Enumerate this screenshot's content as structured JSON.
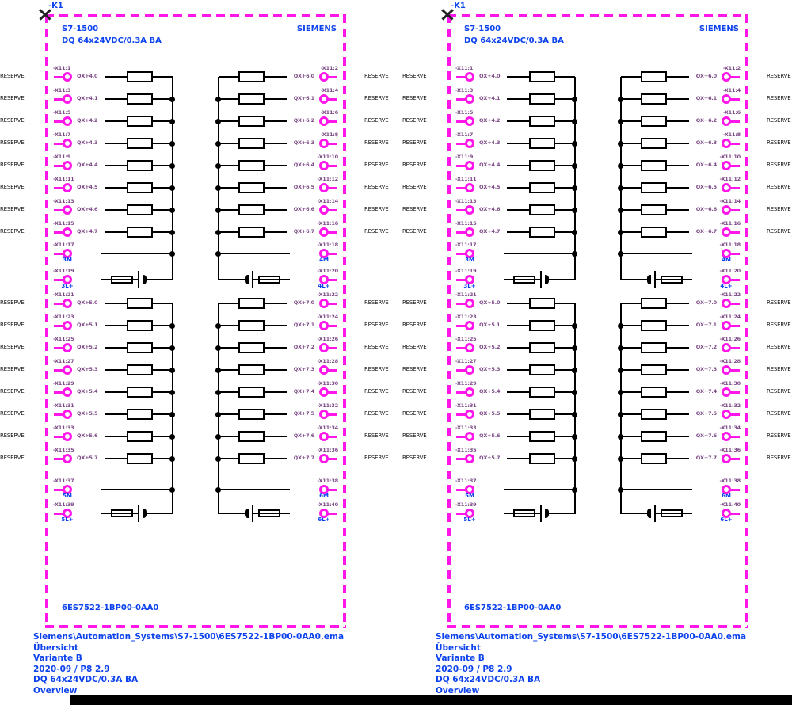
{
  "drawing": {
    "device_tag": "-K1",
    "title": "S7-1500",
    "subtitle": "DQ 64x24VDC/0.3A BA",
    "brand": "SIEMENS",
    "part_number": "6ES7522-1BP00-0AA0",
    "reserve_label": "RESERVE",
    "panel_count": 2,
    "groups": [
      {
        "left_pins": [
          {
            "pin": "-X11:1",
            "signal": "QX+4.0"
          },
          {
            "pin": "-X11:3",
            "signal": "QX+4.1"
          },
          {
            "pin": "-X11:5",
            "signal": "QX+4.2"
          },
          {
            "pin": "-X11:7",
            "signal": "QX+4.3"
          },
          {
            "pin": "-X11:9",
            "signal": "QX+4.4"
          },
          {
            "pin": "-X11:11",
            "signal": "QX+4.5"
          },
          {
            "pin": "-X11:13",
            "signal": "QX+4.6"
          },
          {
            "pin": "-X11:15",
            "signal": "QX+4.7"
          }
        ],
        "right_pins": [
          {
            "pin": "-X11:2",
            "signal": "QX+6.0"
          },
          {
            "pin": "-X11:4",
            "signal": "QX+6.1"
          },
          {
            "pin": "-X11:6",
            "signal": "QX+6.2"
          },
          {
            "pin": "-X11:8",
            "signal": "QX+6.3"
          },
          {
            "pin": "-X11:10",
            "signal": "QX+6.4"
          },
          {
            "pin": "-X11:12",
            "signal": "QX+6.5"
          },
          {
            "pin": "-X11:14",
            "signal": "QX+6.6"
          },
          {
            "pin": "-X11:16",
            "signal": "QX+6.7"
          }
        ],
        "power": {
          "m_left": {
            "pin": "-X11:17",
            "label": "3M"
          },
          "m_right": {
            "pin": "-X11:18",
            "label": "4M"
          },
          "l_left": {
            "pin": "-X11:19",
            "label": "3L+"
          },
          "l_right": {
            "pin": "-X11:20",
            "label": "4L+"
          }
        }
      },
      {
        "left_pins": [
          {
            "pin": "-X11:21",
            "signal": "QX+5.0"
          },
          {
            "pin": "-X11:23",
            "signal": "QX+5.1"
          },
          {
            "pin": "-X11:25",
            "signal": "QX+5.2"
          },
          {
            "pin": "-X11:27",
            "signal": "QX+5.3"
          },
          {
            "pin": "-X11:29",
            "signal": "QX+5.4"
          },
          {
            "pin": "-X11:31",
            "signal": "QX+5.5"
          },
          {
            "pin": "-X11:33",
            "signal": "QX+5.6"
          },
          {
            "pin": "-X11:35",
            "signal": "QX+5.7"
          }
        ],
        "right_pins": [
          {
            "pin": "-X11:22",
            "signal": "QX+7.0"
          },
          {
            "pin": "-X11:24",
            "signal": "QX+7.1"
          },
          {
            "pin": "-X11:26",
            "signal": "QX+7.2"
          },
          {
            "pin": "-X11:28",
            "signal": "QX+7.3"
          },
          {
            "pin": "-X11:30",
            "signal": "QX+7.4"
          },
          {
            "pin": "-X11:32",
            "signal": "QX+7.5"
          },
          {
            "pin": "-X11:34",
            "signal": "QX+7.6"
          },
          {
            "pin": "-X11:36",
            "signal": "QX+7.7"
          }
        ],
        "power": {
          "m_left": {
            "pin": "-X11:37",
            "label": "5M"
          },
          "m_right": {
            "pin": "-X11:38",
            "label": "6M"
          },
          "l_left": {
            "pin": "-X11:39",
            "label": "5L+"
          },
          "l_right": {
            "pin": "-X11:40",
            "label": "6L+"
          }
        }
      }
    ]
  },
  "footer_blocks": [
    {
      "lines": [
        "Siemens\\Automation_Systems\\S7-1500\\6ES7522-1BP00-0AA0.ema",
        "Übersicht",
        "Variante B",
        "2020-09 / P8 2.9",
        "DQ 64x24VDC/0.3A BA",
        "Overview"
      ]
    },
    {
      "lines": [
        "Siemens\\Automation_Systems\\S7-1500\\6ES7522-1BP00-0AA0.ema",
        "Übersicht",
        "Variante B",
        "2020-09 / P8 2.9",
        "DQ 64x24VDC/0.3A BA",
        "Overview"
      ]
    }
  ],
  "colors": {
    "magenta": "#ff17e9",
    "blue": "#0d43ee",
    "pin_text": "#7c4a86",
    "black": "#000000"
  }
}
